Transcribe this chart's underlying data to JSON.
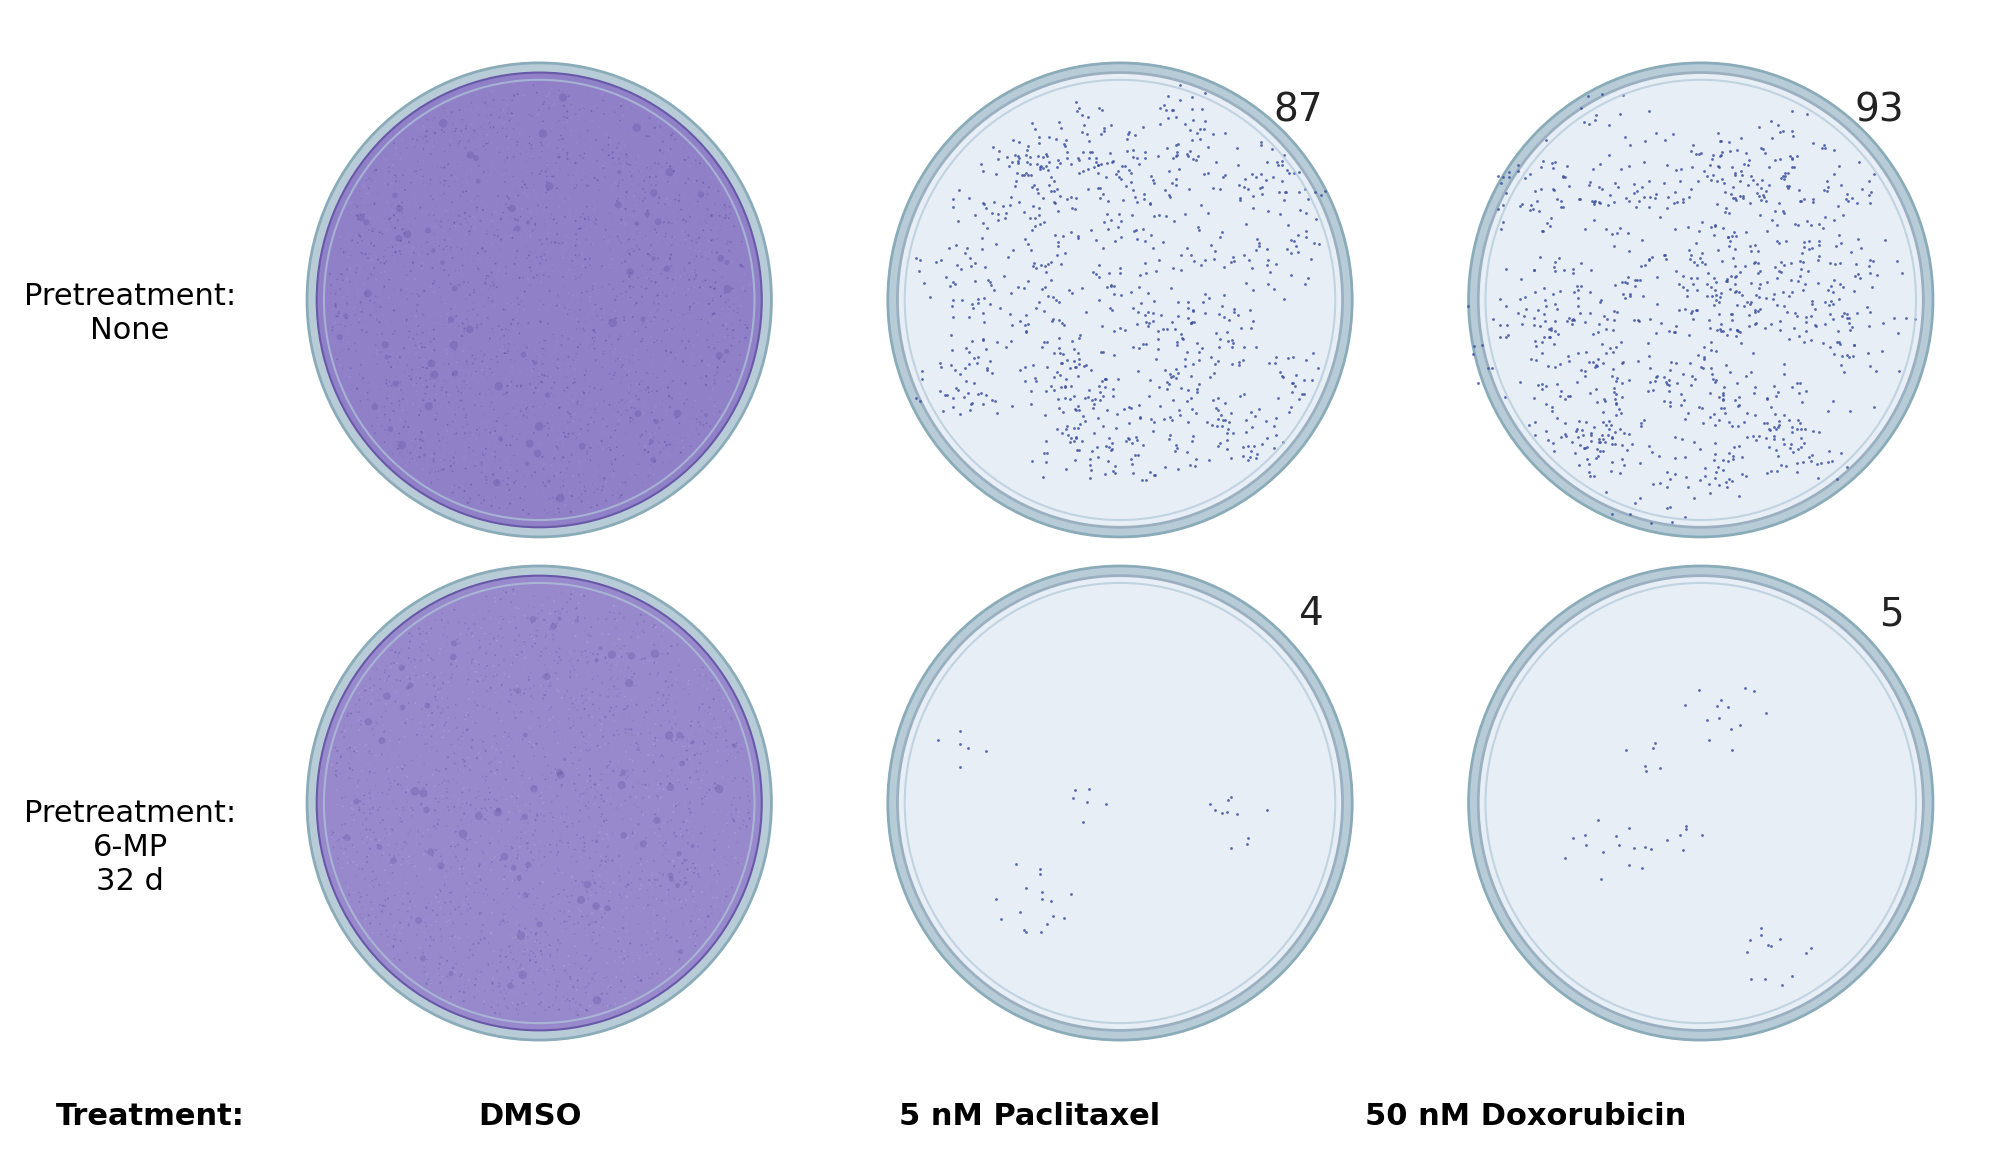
{
  "figsize": [
    20.0,
    11.61
  ],
  "dpi": 100,
  "background": "#ffffff",
  "grid_rows": 2,
  "grid_cols": 3,
  "row_labels": [
    "Pretreatment:\nNone",
    "Pretreatment:\n6-MP\n32 d"
  ],
  "col_labels": [
    "DMSO",
    "5 nM Paclitaxel",
    "50 nM Doxorubicin"
  ],
  "col_label_prefix": "Treatment:",
  "colony_counts": [
    [
      null,
      "87",
      "93"
    ],
    [
      null,
      "4",
      "5"
    ]
  ],
  "plate_colors": [
    [
      "#8b7bc8",
      "#dde5ef",
      "#dde5ef"
    ],
    [
      "#a090d0",
      "#dde5ef",
      "#dde5ef"
    ]
  ],
  "plate_bg": "#c8d8e8",
  "plate_border": "#a0b8c8",
  "plate_fill_dense": "#8b7bc8",
  "plate_fill_sparse": "#dde5ef",
  "colony_color": "#3a4fa0",
  "count_fontsize": 28,
  "row_label_fontsize": 22,
  "col_label_fontsize": 22,
  "treatment_label_fontsize": 22,
  "count_color": "#222222"
}
